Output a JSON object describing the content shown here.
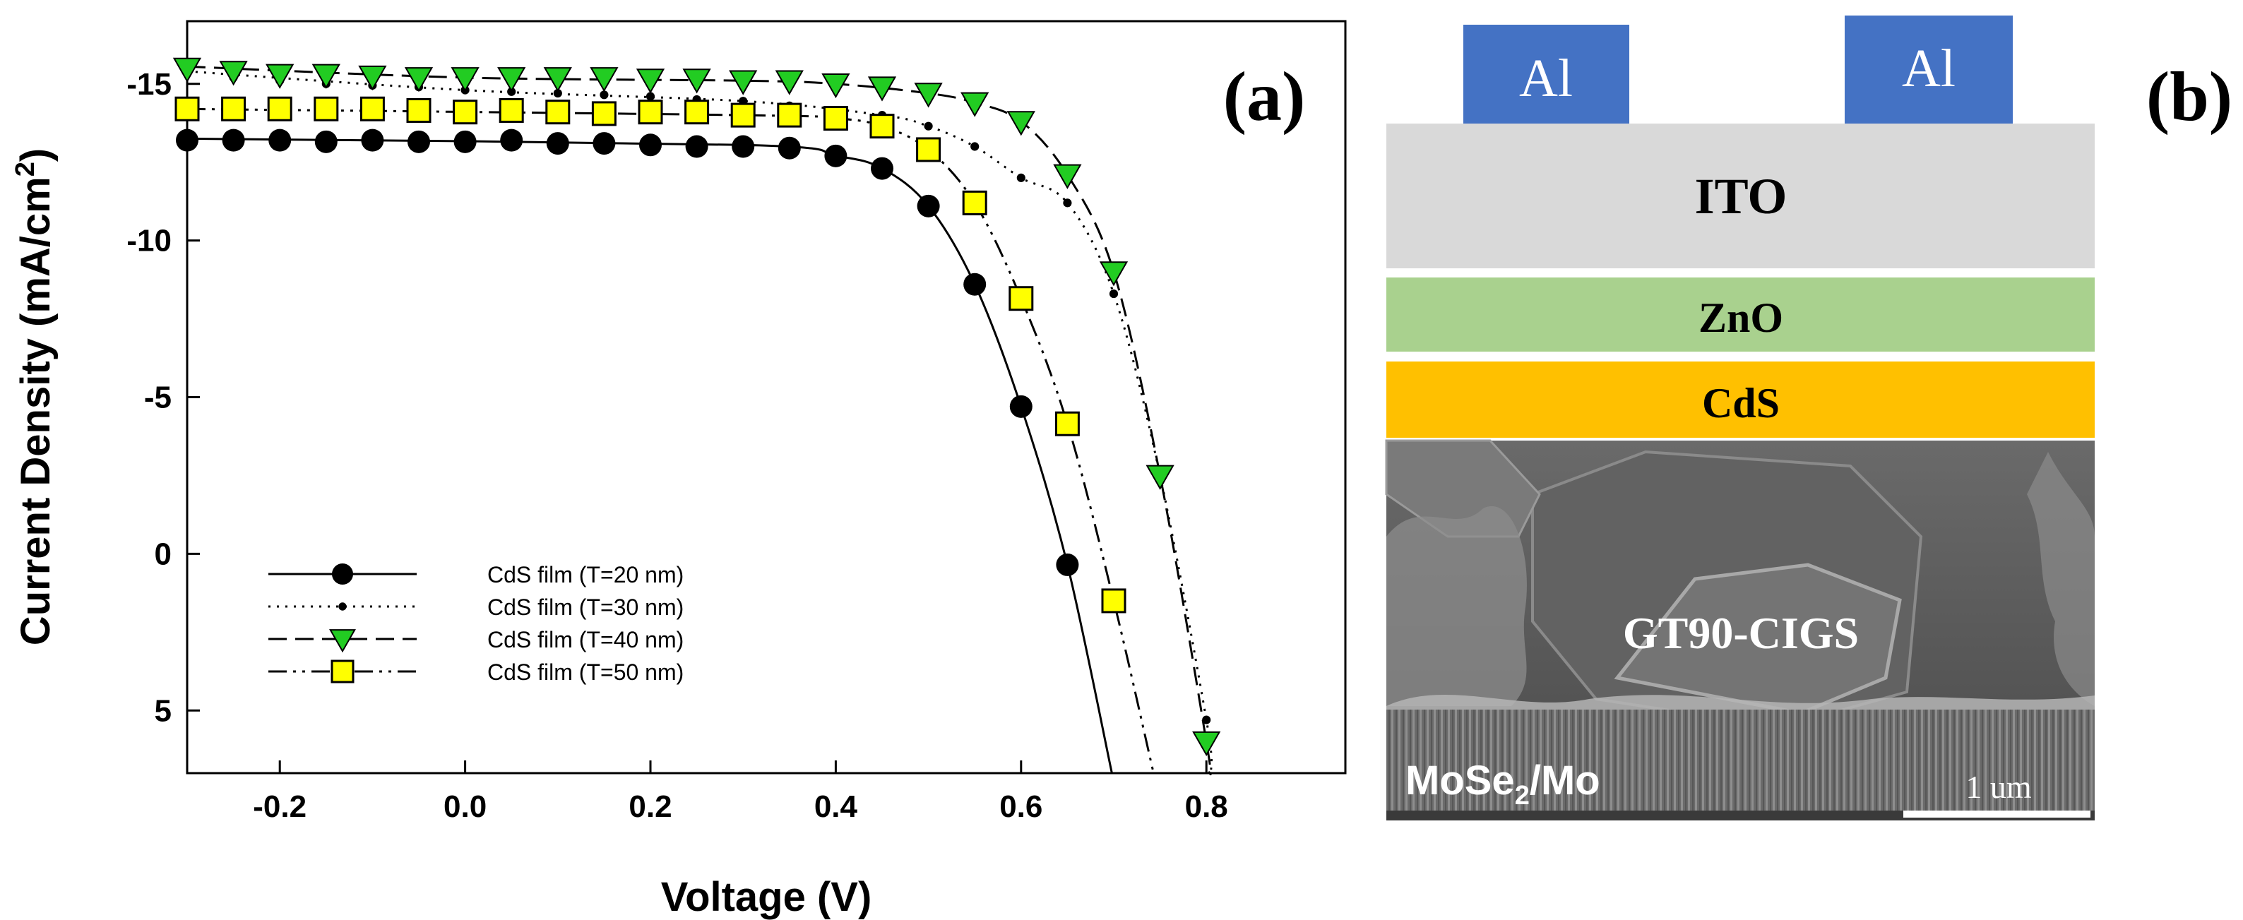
{
  "chart_data": {
    "type": "line",
    "panel_label": "(a)",
    "xlabel": "Voltage (V)",
    "ylabel_main": "Current Density (mA/cm",
    "ylabel_sup": "2",
    "ylabel_close": ")",
    "xlim": [
      -0.3,
      0.95
    ],
    "ylim": [
      7,
      -17
    ],
    "x_ticks": [
      -0.2,
      0.0,
      0.2,
      0.4,
      0.6,
      0.8
    ],
    "x_tick_labels": [
      "-0.2",
      "0.0",
      "0.2",
      "0.4",
      "0.6",
      "0.8"
    ],
    "y_ticks": [
      -15,
      -10,
      -5,
      0,
      5
    ],
    "y_tick_labels": [
      "-15",
      "-10",
      "-5",
      "0",
      "5"
    ],
    "grid": false,
    "legend_position": "lower-left",
    "series": [
      {
        "name": "CdS film (T=20 nm)",
        "marker": "circle",
        "line": "solid",
        "color": "#000000",
        "x": [
          -0.3,
          -0.25,
          -0.2,
          -0.15,
          -0.1,
          -0.05,
          0.0,
          0.05,
          0.1,
          0.15,
          0.2,
          0.25,
          0.3,
          0.35,
          0.4,
          0.45,
          0.5,
          0.55,
          0.6,
          0.65
        ],
        "y": [
          -13.2,
          -13.2,
          -13.2,
          -13.15,
          -13.2,
          -13.15,
          -13.15,
          -13.2,
          -13.1,
          -13.1,
          -13.05,
          -13.0,
          -13.0,
          -12.95,
          -12.7,
          -12.3,
          -11.1,
          -8.6,
          -4.7,
          0.35
        ],
        "curve": [
          [
            -0.3,
            -13.25
          ],
          [
            0.3,
            -13.05
          ],
          [
            0.4,
            -12.7
          ],
          [
            0.45,
            -12.3
          ],
          [
            0.5,
            -11.1
          ],
          [
            0.55,
            -8.6
          ],
          [
            0.6,
            -4.7
          ],
          [
            0.65,
            0.35
          ],
          [
            0.698,
            7
          ]
        ]
      },
      {
        "name": "CdS film (T=30 nm)",
        "marker": "dot",
        "line": "dotted",
        "color": "#000000",
        "x": [
          -0.3,
          -0.25,
          -0.2,
          -0.15,
          -0.1,
          -0.05,
          0.0,
          0.05,
          0.1,
          0.15,
          0.2,
          0.25,
          0.3,
          0.35,
          0.4,
          0.45,
          0.5,
          0.55,
          0.6,
          0.65,
          0.7,
          0.75,
          0.8
        ],
        "y": [
          -15.4,
          -15.2,
          -15.1,
          -15.0,
          -14.95,
          -14.9,
          -14.8,
          -14.75,
          -14.7,
          -14.65,
          -14.6,
          -14.5,
          -14.45,
          -14.3,
          -14.15,
          -14.0,
          -13.65,
          -13.0,
          -12.0,
          -11.2,
          -8.3,
          -2.5,
          5.3
        ],
        "curve": [
          [
            -0.3,
            -15.4
          ],
          [
            0.0,
            -14.8
          ],
          [
            0.3,
            -14.45
          ],
          [
            0.45,
            -14.0
          ],
          [
            0.5,
            -13.65
          ],
          [
            0.55,
            -13.0
          ],
          [
            0.6,
            -12.0
          ],
          [
            0.65,
            -11.2
          ],
          [
            0.7,
            -8.3
          ],
          [
            0.75,
            -2.5
          ],
          [
            0.8,
            5.3
          ],
          [
            0.805,
            7
          ]
        ]
      },
      {
        "name": "CdS film (T=40 nm)",
        "marker": "triangle-down",
        "line": "dashed",
        "color": "#22cc22",
        "x": [
          -0.3,
          -0.25,
          -0.2,
          -0.15,
          -0.1,
          -0.05,
          0.0,
          0.05,
          0.1,
          0.15,
          0.2,
          0.25,
          0.3,
          0.35,
          0.4,
          0.45,
          0.5,
          0.55,
          0.6,
          0.65,
          0.7,
          0.75,
          0.8
        ],
        "y": [
          -15.5,
          -15.4,
          -15.3,
          -15.3,
          -15.25,
          -15.2,
          -15.2,
          -15.2,
          -15.2,
          -15.2,
          -15.15,
          -15.15,
          -15.1,
          -15.1,
          -15.0,
          -14.9,
          -14.7,
          -14.4,
          -13.8,
          -12.1,
          -9.0,
          -2.5,
          6.0
        ],
        "curve": [
          [
            -0.3,
            -15.55
          ],
          [
            0.0,
            -15.2
          ],
          [
            0.3,
            -15.1
          ],
          [
            0.4,
            -15.0
          ],
          [
            0.5,
            -14.7
          ],
          [
            0.55,
            -14.4
          ],
          [
            0.6,
            -13.8
          ],
          [
            0.65,
            -12.1
          ],
          [
            0.7,
            -9.0
          ],
          [
            0.75,
            -2.5
          ],
          [
            0.8,
            6.0
          ],
          [
            0.803,
            7
          ]
        ]
      },
      {
        "name": "CdS film (T=50 nm)",
        "marker": "square",
        "line": "dash-dot-dot",
        "color": "#ffff00",
        "x": [
          -0.3,
          -0.25,
          -0.2,
          -0.15,
          -0.1,
          -0.05,
          0.0,
          0.05,
          0.1,
          0.15,
          0.2,
          0.25,
          0.3,
          0.35,
          0.4,
          0.45,
          0.5,
          0.55,
          0.6,
          0.65,
          0.7
        ],
        "y": [
          -14.2,
          -14.2,
          -14.2,
          -14.2,
          -14.2,
          -14.15,
          -14.1,
          -14.15,
          -14.1,
          -14.05,
          -14.1,
          -14.1,
          -14.0,
          -14.0,
          -13.9,
          -13.65,
          -12.9,
          -11.2,
          -8.15,
          -4.15,
          1.5
        ],
        "curve": [
          [
            -0.3,
            -14.2
          ],
          [
            0.3,
            -14.0
          ],
          [
            0.4,
            -13.9
          ],
          [
            0.45,
            -13.65
          ],
          [
            0.5,
            -12.9
          ],
          [
            0.55,
            -11.2
          ],
          [
            0.6,
            -8.15
          ],
          [
            0.65,
            -4.15
          ],
          [
            0.7,
            1.5
          ],
          [
            0.743,
            7
          ]
        ]
      }
    ]
  },
  "diagram": {
    "panel_label": "(b)",
    "contacts": [
      "Al",
      "Al"
    ],
    "layers": {
      "ito": "ITO",
      "zno": "ZnO",
      "cds": "CdS",
      "cigs": "GT90-CIGS",
      "back_contact_main": "MoSe",
      "back_contact_sub": "2",
      "back_contact_tail": "/Mo",
      "scale_bar": "1 um"
    },
    "colors": {
      "al": "#4472c4",
      "ito": "#d9d9d9",
      "zno": "#a9d18e",
      "cds": "#ffc000"
    }
  }
}
